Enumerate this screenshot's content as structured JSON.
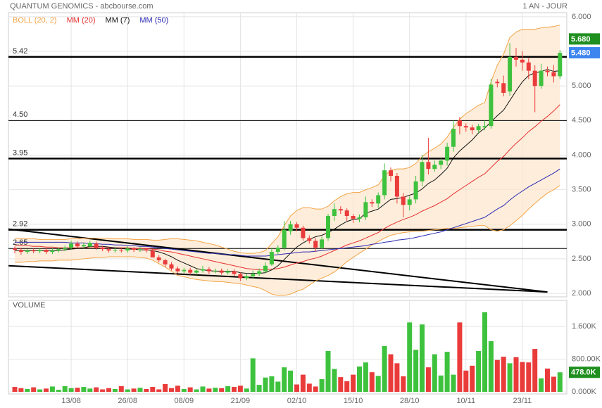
{
  "chart_data": [
    {
      "type": "candlestick",
      "title": "QUANTUM GENOMICS - abcbourse.com",
      "subtitle": "1 AN - JOUR",
      "categories": [
        null,
        null,
        null,
        null,
        null,
        null,
        null,
        null,
        null,
        "13/08",
        null,
        null,
        null,
        null,
        null,
        null,
        null,
        null,
        "26/08",
        null,
        null,
        null,
        null,
        null,
        null,
        null,
        null,
        "08/09",
        null,
        null,
        null,
        null,
        null,
        null,
        null,
        null,
        "21/09",
        null,
        null,
        null,
        null,
        null,
        null,
        null,
        null,
        "02/10",
        null,
        null,
        null,
        null,
        null,
        null,
        null,
        null,
        "15/10",
        null,
        null,
        null,
        null,
        null,
        null,
        null,
        null,
        "28/10",
        null,
        null,
        null,
        null,
        null,
        null,
        null,
        null,
        "10/11",
        null,
        null,
        null,
        null,
        null,
        null,
        null,
        null,
        "23/11",
        null,
        null,
        null,
        null,
        null,
        null
      ],
      "open": [
        2.65,
        2.63,
        2.6,
        2.62,
        2.61,
        2.63,
        2.6,
        2.62,
        2.64,
        2.66,
        2.72,
        2.68,
        2.68,
        2.72,
        2.66,
        2.64,
        2.62,
        2.63,
        2.62,
        2.65,
        2.63,
        2.64,
        2.62,
        2.52,
        2.48,
        2.42,
        2.36,
        2.32,
        2.34,
        2.3,
        2.33,
        2.35,
        2.32,
        2.33,
        2.3,
        2.32,
        2.28,
        2.22,
        2.25,
        2.28,
        2.32,
        2.42,
        2.6,
        2.66,
        2.9,
        3.0,
        2.95,
        2.8,
        2.76,
        2.66,
        2.8,
        3.12,
        3.22,
        3.2,
        3.12,
        3.08,
        3.1,
        3.32,
        3.3,
        3.42,
        3.78,
        3.7,
        3.4,
        3.28,
        3.36,
        3.62,
        3.9,
        3.8,
        3.86,
        3.92,
        4.12,
        4.5,
        4.42,
        4.4,
        4.36,
        4.4,
        4.42,
        5.06,
        5.04,
        4.92,
        5.42,
        5.38,
        5.34,
        5.22,
        5.0,
        5.22,
        5.2,
        5.14
      ],
      "high": [
        2.68,
        2.66,
        2.64,
        2.65,
        2.65,
        2.66,
        2.65,
        2.66,
        2.69,
        2.76,
        2.75,
        2.73,
        2.76,
        2.75,
        2.69,
        2.67,
        2.66,
        2.65,
        2.68,
        2.67,
        2.67,
        2.66,
        2.64,
        2.55,
        2.5,
        2.45,
        2.39,
        2.37,
        2.37,
        2.36,
        2.4,
        2.38,
        2.36,
        2.36,
        2.35,
        2.35,
        2.3,
        2.28,
        2.33,
        2.36,
        2.45,
        2.66,
        2.7,
        3.05,
        3.05,
        3.03,
        2.98,
        2.84,
        2.8,
        2.82,
        3.15,
        3.3,
        3.26,
        3.23,
        3.15,
        3.14,
        3.4,
        3.36,
        3.46,
        3.88,
        3.82,
        3.74,
        3.45,
        3.4,
        3.7,
        4.0,
        4.25,
        3.92,
        3.95,
        4.18,
        4.5,
        4.55,
        4.46,
        4.44,
        4.45,
        4.5,
        5.1,
        5.1,
        5.15,
        5.62,
        5.55,
        5.5,
        5.4,
        5.3,
        5.32,
        5.28,
        5.3,
        5.52
      ],
      "low": [
        2.58,
        2.56,
        2.57,
        2.58,
        2.58,
        2.57,
        2.57,
        2.59,
        2.61,
        2.63,
        2.65,
        2.65,
        2.65,
        2.63,
        2.61,
        2.59,
        2.59,
        2.59,
        2.59,
        2.6,
        2.6,
        2.59,
        2.55,
        2.45,
        2.38,
        2.33,
        2.29,
        2.29,
        2.27,
        2.27,
        2.3,
        2.28,
        2.29,
        2.27,
        2.27,
        2.25,
        2.18,
        2.19,
        2.22,
        2.25,
        2.29,
        2.4,
        2.56,
        2.62,
        2.85,
        2.9,
        2.76,
        2.72,
        2.6,
        2.64,
        2.76,
        3.05,
        3.15,
        3.05,
        3.02,
        3.03,
        3.06,
        3.25,
        3.24,
        3.36,
        3.62,
        3.3,
        3.1,
        3.2,
        3.3,
        3.55,
        3.72,
        3.76,
        3.8,
        3.85,
        4.05,
        4.3,
        4.34,
        4.3,
        4.32,
        4.36,
        4.38,
        4.98,
        4.85,
        4.86,
        5.28,
        5.22,
        5.1,
        4.62,
        4.96,
        5.14,
        5.05,
        5.1
      ],
      "close": [
        2.63,
        2.6,
        2.62,
        2.61,
        2.63,
        2.6,
        2.62,
        2.64,
        2.66,
        2.72,
        2.68,
        2.7,
        2.73,
        2.66,
        2.64,
        2.62,
        2.63,
        2.62,
        2.65,
        2.63,
        2.64,
        2.62,
        2.52,
        2.48,
        2.42,
        2.36,
        2.32,
        2.34,
        2.3,
        2.33,
        2.35,
        2.32,
        2.33,
        2.3,
        2.32,
        2.28,
        2.22,
        2.25,
        2.28,
        2.32,
        2.4,
        2.6,
        2.66,
        2.92,
        3.0,
        2.95,
        2.8,
        2.76,
        2.66,
        2.78,
        3.12,
        3.22,
        3.2,
        3.12,
        3.08,
        3.1,
        3.32,
        3.3,
        3.42,
        3.78,
        3.7,
        3.4,
        3.28,
        3.36,
        3.62,
        3.9,
        3.8,
        3.86,
        3.92,
        4.12,
        4.38,
        4.42,
        4.4,
        4.36,
        4.42,
        4.42,
        5.02,
        5.04,
        4.9,
        5.42,
        5.38,
        5.34,
        5.22,
        5.0,
        5.22,
        5.2,
        5.14,
        5.48
      ],
      "up_color": "#3ec23e",
      "down_color": "#ea3b3b",
      "series": [
        {
          "name": "BOLL (20, 2)",
          "color": "#f2a444",
          "fill": "#fde6cc",
          "upper": [
            2.8,
            2.8,
            2.79,
            2.79,
            2.78,
            2.78,
            2.78,
            2.78,
            2.78,
            2.79,
            2.79,
            2.8,
            2.8,
            2.8,
            2.8,
            2.8,
            2.79,
            2.79,
            2.79,
            2.78,
            2.78,
            2.78,
            2.77,
            2.77,
            2.78,
            2.79,
            2.79,
            2.78,
            2.77,
            2.76,
            2.74,
            2.72,
            2.7,
            2.67,
            2.64,
            2.61,
            2.59,
            2.58,
            2.58,
            2.59,
            2.62,
            2.72,
            2.82,
            2.98,
            3.12,
            3.2,
            3.24,
            3.24,
            3.22,
            3.22,
            3.26,
            3.34,
            3.4,
            3.44,
            3.46,
            3.46,
            3.5,
            3.53,
            3.57,
            3.7,
            3.78,
            3.8,
            3.8,
            3.82,
            3.88,
            3.98,
            4.05,
            4.1,
            4.16,
            4.26,
            4.4,
            4.52,
            4.6,
            4.66,
            4.72,
            4.76,
            5.06,
            5.3,
            5.46,
            5.7,
            5.78,
            5.82,
            5.82,
            5.82,
            5.84,
            5.85,
            5.86,
            5.88
          ],
          "lower": [
            2.45,
            2.45,
            2.46,
            2.46,
            2.47,
            2.47,
            2.47,
            2.48,
            2.48,
            2.48,
            2.49,
            2.5,
            2.51,
            2.52,
            2.52,
            2.53,
            2.53,
            2.53,
            2.53,
            2.53,
            2.52,
            2.51,
            2.48,
            2.43,
            2.38,
            2.32,
            2.26,
            2.24,
            2.22,
            2.2,
            2.19,
            2.18,
            2.17,
            2.17,
            2.16,
            2.15,
            2.14,
            2.12,
            2.1,
            2.08,
            2.04,
            1.99,
            1.97,
            1.97,
            1.99,
            2.03,
            2.06,
            2.12,
            2.18,
            2.22,
            2.26,
            2.31,
            2.38,
            2.46,
            2.52,
            2.58,
            2.64,
            2.7,
            2.75,
            2.8,
            2.84,
            2.86,
            2.88,
            2.89,
            2.9,
            2.9,
            2.91,
            2.92,
            2.93,
            2.94,
            2.94,
            2.95,
            2.96,
            2.97,
            2.98,
            2.98,
            2.92,
            2.9,
            2.92,
            2.98,
            3.05,
            3.13,
            3.22,
            3.3,
            3.38,
            3.45,
            3.5,
            3.56
          ]
        },
        {
          "name": "MM (20)",
          "color": "#e52f2f",
          "values": [
            2.7,
            2.69,
            2.69,
            2.68,
            2.68,
            2.67,
            2.67,
            2.66,
            2.66,
            2.66,
            2.66,
            2.66,
            2.66,
            2.66,
            2.66,
            2.66,
            2.66,
            2.66,
            2.66,
            2.65,
            2.65,
            2.65,
            2.64,
            2.63,
            2.61,
            2.6,
            2.58,
            2.56,
            2.54,
            2.52,
            2.5,
            2.48,
            2.46,
            2.44,
            2.42,
            2.4,
            2.38,
            2.36,
            2.35,
            2.34,
            2.34,
            2.35,
            2.36,
            2.38,
            2.41,
            2.44,
            2.46,
            2.49,
            2.51,
            2.54,
            2.58,
            2.62,
            2.66,
            2.7,
            2.73,
            2.76,
            2.8,
            2.84,
            2.88,
            2.94,
            2.99,
            3.03,
            3.07,
            3.1,
            3.14,
            3.19,
            3.23,
            3.27,
            3.32,
            3.37,
            3.44,
            3.5,
            3.56,
            3.62,
            3.68,
            3.73,
            3.82,
            3.91,
            3.98,
            4.08,
            4.17,
            4.25,
            4.34,
            4.41,
            4.49,
            4.56,
            4.64,
            4.73
          ]
        },
        {
          "name": "MM (7)",
          "color": "#111111",
          "values": [
            2.62,
            2.62,
            2.62,
            2.62,
            2.62,
            2.62,
            2.62,
            2.62,
            2.63,
            2.64,
            2.65,
            2.66,
            2.68,
            2.68,
            2.68,
            2.67,
            2.66,
            2.65,
            2.64,
            2.64,
            2.63,
            2.63,
            2.62,
            2.6,
            2.57,
            2.53,
            2.48,
            2.44,
            2.4,
            2.36,
            2.34,
            2.33,
            2.32,
            2.32,
            2.32,
            2.32,
            2.3,
            2.29,
            2.29,
            2.29,
            2.3,
            2.34,
            2.4,
            2.49,
            2.58,
            2.67,
            2.73,
            2.78,
            2.82,
            2.84,
            2.88,
            2.93,
            2.99,
            3.04,
            3.07,
            3.08,
            3.16,
            3.19,
            3.22,
            3.29,
            3.36,
            3.37,
            3.39,
            3.42,
            3.45,
            3.51,
            3.59,
            3.64,
            3.72,
            3.81,
            3.96,
            4.06,
            4.14,
            4.22,
            4.32,
            4.39,
            4.48,
            4.57,
            4.65,
            4.79,
            4.93,
            5.06,
            5.15,
            5.19,
            5.21,
            5.24,
            5.21,
            5.22
          ]
        },
        {
          "name": "MM (50)",
          "color": "#2a2ab4",
          "values": [
            2.74,
            2.74,
            2.74,
            2.74,
            2.74,
            2.74,
            2.74,
            2.74,
            2.74,
            2.73,
            2.73,
            2.73,
            2.72,
            2.72,
            2.71,
            2.71,
            2.7,
            2.7,
            2.69,
            2.69,
            2.68,
            2.68,
            2.67,
            2.66,
            2.65,
            2.64,
            2.63,
            2.62,
            2.61,
            2.6,
            2.59,
            2.58,
            2.58,
            2.57,
            2.56,
            2.56,
            2.55,
            2.54,
            2.54,
            2.54,
            2.54,
            2.55,
            2.56,
            2.57,
            2.58,
            2.59,
            2.6,
            2.6,
            2.61,
            2.62,
            2.63,
            2.64,
            2.65,
            2.66,
            2.67,
            2.68,
            2.69,
            2.71,
            2.72,
            2.74,
            2.75,
            2.77,
            2.78,
            2.79,
            2.81,
            2.83,
            2.85,
            2.87,
            2.89,
            2.92,
            2.95,
            2.98,
            3.01,
            3.04,
            3.07,
            3.1,
            3.16,
            3.22,
            3.27,
            3.35,
            3.42,
            3.48,
            3.54,
            3.59,
            3.64,
            3.69,
            3.74,
            3.8
          ]
        }
      ],
      "levels": [
        {
          "value": 5.42,
          "label": "5.42",
          "bold": true
        },
        {
          "value": 4.5,
          "label": "4.50",
          "bold": false
        },
        {
          "value": 3.95,
          "label": "3.95",
          "bold": true
        },
        {
          "value": 2.92,
          "label": "2.92",
          "bold": true
        },
        {
          "value": 2.65,
          "label": "2.65",
          "bold": false
        }
      ],
      "trendlines": [
        {
          "from": [
            -1,
            2.93
          ],
          "to": [
            85,
            2.02
          ]
        },
        {
          "from": [
            -1,
            2.4
          ],
          "to": [
            85,
            2.02
          ]
        }
      ],
      "price_tags": [
        {
          "value": 5.68,
          "label": "5.680",
          "color": "#1f8f1f"
        },
        {
          "value": 5.48,
          "label": "5.480",
          "color": "#3d86f0"
        }
      ],
      "ylim": [
        1.95,
        6.06
      ],
      "yticks": [
        {
          "value": 2,
          "label": "2.000"
        },
        {
          "value": 2.5,
          "label": "2.500"
        },
        {
          "value": 3,
          "label": "3.000"
        },
        {
          "value": 3.5,
          "label": "3.500"
        },
        {
          "value": 4,
          "label": "4.000"
        },
        {
          "value": 4.5,
          "label": "4.500"
        },
        {
          "value": 5,
          "label": "5.000"
        },
        {
          "value": 5.5,
          "label": "5.500"
        },
        {
          "value": 6,
          "label": "6.000"
        }
      ],
      "grid": true
    },
    {
      "type": "bar",
      "title": "VOLUME",
      "values": [
        120,
        90,
        70,
        110,
        60,
        80,
        130,
        50,
        140,
        90,
        100,
        120,
        80,
        110,
        60,
        90,
        70,
        140,
        60,
        80,
        100,
        70,
        120,
        60,
        190,
        90,
        150,
        70,
        110,
        60,
        130,
        80,
        100,
        90,
        140,
        120,
        150,
        80,
        820,
        170,
        350,
        380,
        250,
        600,
        520,
        180,
        420,
        200,
        130,
        310,
        1000,
        560,
        360,
        260,
        420,
        620,
        720,
        480,
        390,
        1120,
        920,
        700,
        380,
        1700,
        1030,
        1650,
        600,
        920,
        400,
        980,
        420,
        1700,
        520,
        640,
        1000,
        1950,
        1240,
        780,
        860,
        700,
        850,
        730,
        720,
        1050,
        330,
        570,
        370,
        478
      ],
      "price_tags": [
        {
          "value": 478,
          "label": "478.0K",
          "color": "#1f8f1f"
        }
      ],
      "ylim": [
        0,
        2240
      ],
      "yticks": [
        {
          "value": 0,
          "label": "0.000K"
        },
        {
          "value": 800,
          "label": "800.00K"
        },
        {
          "value": 1600,
          "label": "1.600K"
        }
      ],
      "grid": true
    }
  ]
}
